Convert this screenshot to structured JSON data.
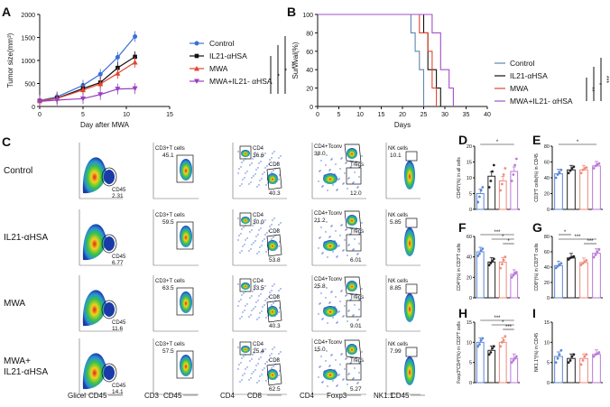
{
  "panel_labels": {
    "A": "A",
    "B": "B",
    "C": "C",
    "D": "D",
    "E": "E",
    "F": "F",
    "G": "G",
    "H": "H",
    "I": "I"
  },
  "colors": {
    "control": "#3a6fd8",
    "il21": "#111111",
    "mwa": "#e0462f",
    "combo": "#9b3fc0",
    "bar_control": "#5b86d6",
    "bar_il21": "#222222",
    "bar_mwa": "#f08a7a",
    "bar_combo": "#b877d6"
  },
  "chart_data": [
    {
      "id": "A",
      "type": "line",
      "xlabel": "Day after MWA",
      "ylabel": "Tumor size(mm³)",
      "xlim": [
        0,
        15
      ],
      "ylim": [
        0,
        2000
      ],
      "xticks": [
        "0",
        "5",
        "10",
        "15"
      ],
      "yticks": [
        "0",
        "500",
        "1000",
        "1500",
        "2000"
      ],
      "x": [
        0,
        2,
        5,
        7,
        9,
        11
      ],
      "series": [
        {
          "name": "Control",
          "marker": "circle",
          "values": [
            130,
            210,
            460,
            700,
            1070,
            1520
          ]
        },
        {
          "name": "IL21-αHSA",
          "marker": "square",
          "values": [
            120,
            180,
            390,
            520,
            840,
            1080
          ]
        },
        {
          "name": "MWA",
          "marker": "triangle",
          "values": [
            125,
            175,
            360,
            490,
            720,
            960
          ]
        },
        {
          "name": "MWA+IL21- αHSA",
          "marker": "tri-down",
          "values": [
            110,
            140,
            170,
            260,
            380,
            390
          ]
        }
      ],
      "significance": [
        "*",
        "*",
        "***"
      ]
    },
    {
      "id": "B",
      "type": "line",
      "subtype": "survival",
      "xlabel": "Days",
      "ylabel": "Survival(%)",
      "xlim": [
        0,
        40
      ],
      "ylim": [
        0,
        100
      ],
      "xticks": [
        "0",
        "5",
        "10",
        "15",
        "20",
        "25",
        "30",
        "35",
        "40"
      ],
      "yticks": [
        "0",
        "20",
        "40",
        "60",
        "80",
        "100"
      ],
      "series": [
        {
          "name": "Control",
          "steps": [
            [
              0,
              100
            ],
            [
              22,
              100
            ],
            [
              22,
              80
            ],
            [
              23,
              80
            ],
            [
              23,
              60
            ],
            [
              24,
              60
            ],
            [
              24,
              40
            ],
            [
              25,
              40
            ],
            [
              25,
              0
            ]
          ]
        },
        {
          "name": "IL21-αHSA",
          "steps": [
            [
              0,
              100
            ],
            [
              25,
              100
            ],
            [
              25,
              80
            ],
            [
              26,
              80
            ],
            [
              26,
              40
            ],
            [
              28,
              40
            ],
            [
              28,
              20
            ],
            [
              29,
              20
            ],
            [
              29,
              0
            ]
          ]
        },
        {
          "name": "MWA",
          "steps": [
            [
              0,
              100
            ],
            [
              24,
              100
            ],
            [
              24,
              80
            ],
            [
              26,
              80
            ],
            [
              26,
              60
            ],
            [
              27,
              60
            ],
            [
              27,
              20
            ],
            [
              28,
              20
            ],
            [
              28,
              0
            ]
          ]
        },
        {
          "name": "MWA+IL21- αHSA",
          "steps": [
            [
              0,
              100
            ],
            [
              27,
              100
            ],
            [
              27,
              80
            ],
            [
              29,
              80
            ],
            [
              29,
              40
            ],
            [
              31,
              40
            ],
            [
              31,
              20
            ],
            [
              32,
              20
            ],
            [
              32,
              0
            ]
          ]
        }
      ],
      "significance": [
        "**",
        "*",
        "***"
      ]
    },
    {
      "id": "D",
      "type": "bar",
      "ylabel": "CD45*(%) in all cells",
      "ylim": [
        0,
        20
      ],
      "yticks": [
        "0",
        "5",
        "10",
        "15",
        "20"
      ],
      "categories": [
        "Control",
        "IL21-αHSA",
        "MWA",
        "MWA+IL21-αHSA"
      ],
      "values": [
        5,
        10.5,
        9,
        12
      ],
      "points": [
        [
          2.3,
          4,
          6,
          7
        ],
        [
          7,
          9,
          12,
          14
        ],
        [
          6,
          8,
          11,
          13
        ],
        [
          9,
          11,
          14,
          16
        ]
      ],
      "sig": [
        {
          "from": 0,
          "to": 3,
          "label": "*"
        }
      ]
    },
    {
      "id": "E",
      "type": "bar",
      "ylabel": "CD3*T cells(%) in CD45",
      "ylim": [
        0,
        80
      ],
      "yticks": [
        "0",
        "20",
        "40",
        "60",
        "80"
      ],
      "categories": [
        "Control",
        "IL21-αHSA",
        "MWA",
        "MWA+IL21-αHSA"
      ],
      "values": [
        45,
        50,
        50,
        55
      ],
      "points": [
        [
          40,
          44,
          47,
          50
        ],
        [
          46,
          49,
          52,
          54
        ],
        [
          46,
          50,
          52,
          53
        ],
        [
          52,
          55,
          57,
          58
        ]
      ],
      "sig": [
        {
          "from": 0,
          "to": 3,
          "label": "*"
        }
      ]
    },
    {
      "id": "F",
      "type": "bar",
      "ylabel": "CD4*(%) in CD3*T cells",
      "ylim": [
        0,
        60
      ],
      "yticks": [
        "0",
        "20",
        "40",
        "60"
      ],
      "categories": [
        "Control",
        "IL21-αHSA",
        "MWA",
        "MWA+IL21-αHSA"
      ],
      "values": [
        45,
        35,
        35,
        23
      ],
      "points": [
        [
          41,
          43,
          46,
          48
        ],
        [
          32,
          34,
          36,
          38
        ],
        [
          29,
          33,
          37,
          40
        ],
        [
          20,
          22,
          24,
          25
        ]
      ],
      "sig": [
        {
          "from": 0,
          "to": 3,
          "label": "***"
        },
        {
          "from": 1,
          "to": 3,
          "label": "*"
        },
        {
          "from": 2,
          "to": 3,
          "label": "*"
        }
      ]
    },
    {
      "id": "G",
      "type": "bar",
      "ylabel": "CD8*(%) in CD3*T cells",
      "ylim": [
        0,
        80
      ],
      "yticks": [
        "0",
        "20",
        "40",
        "60",
        "80"
      ],
      "categories": [
        "Control",
        "IL21-αHSA",
        "MWA",
        "MWA+IL21-αHSA"
      ],
      "values": [
        42,
        52,
        46,
        58
      ],
      "points": [
        [
          39,
          41,
          43,
          45
        ],
        [
          50,
          52,
          53,
          54
        ],
        [
          43,
          45,
          47,
          49
        ],
        [
          53,
          56,
          60,
          63
        ]
      ],
      "sig": [
        {
          "from": 0,
          "to": 1,
          "label": "*"
        },
        {
          "from": 0,
          "to": 3,
          "label": "***"
        },
        {
          "from": 2,
          "to": 3,
          "label": "***"
        }
      ]
    },
    {
      "id": "H",
      "type": "bar",
      "ylabel": "Foxp3*CD4*(%) in CD3*T cells",
      "ylim": [
        0,
        15
      ],
      "yticks": [
        "0",
        "5",
        "10",
        "15"
      ],
      "categories": [
        "Control",
        "IL21-αHSA",
        "MWA",
        "MWA+IL21-αHSA"
      ],
      "values": [
        10,
        8,
        10,
        6
      ],
      "points": [
        [
          9,
          9.5,
          10.5,
          11
        ],
        [
          7,
          7.5,
          8.5,
          9
        ],
        [
          9,
          10,
          10.5,
          11.5
        ],
        [
          5,
          5.5,
          6,
          6.5
        ]
      ],
      "sig": [
        {
          "from": 0,
          "to": 3,
          "label": "***"
        },
        {
          "from": 1,
          "to": 3,
          "label": "*"
        },
        {
          "from": 2,
          "to": 3,
          "label": "***"
        }
      ]
    },
    {
      "id": "I",
      "type": "bar",
      "ylabel": "NK1.1*(%) in CD45",
      "ylim": [
        0,
        15
      ],
      "yticks": [
        "0",
        "5",
        "10",
        "15"
      ],
      "categories": [
        "Control",
        "IL21-αHSA",
        "MWA",
        "MWA+IL21-αHSA"
      ],
      "values": [
        6.5,
        6,
        6,
        7
      ],
      "points": [
        [
          5,
          6,
          7,
          8
        ],
        [
          5,
          5.5,
          6.5,
          7
        ],
        [
          4.5,
          5.5,
          6.5,
          7
        ],
        [
          6.5,
          7,
          7.2,
          7.5
        ]
      ],
      "sig": []
    }
  ],
  "flow": {
    "rows": [
      "Control",
      "IL21-αHSA",
      "MWA",
      "MWA+\nIL21-αHSA"
    ],
    "col_x_labels": [
      "CD45",
      "CD45",
      "CD8",
      "Foxp3",
      "CD45"
    ],
    "col_y_labels": [
      "Glicel",
      "CD3",
      "CD4",
      "CD4",
      "NK1.1"
    ],
    "gates": [
      [
        {
          "t": "CD45\n2.31"
        },
        {
          "t": "CD3+T cells\n45.1"
        },
        {
          "t": "CD4\n36.6",
          "t2": "CD8\n40.3"
        },
        {
          "t": "CD4+Tconv\n38.0",
          "t2": "Tregs\n12.0"
        },
        {
          "t": "NK cells\n10.1"
        }
      ],
      [
        {
          "t": "CD45\n6.77"
        },
        {
          "t": "CD3+T cells\n59.5"
        },
        {
          "t": "CD4\n30.0",
          "t2": "CD8\n53.8"
        },
        {
          "t": "CD4+Tconv\n21.2",
          "t2": "Tregs\n6.01"
        },
        {
          "t": "NK cells\n5.85"
        }
      ],
      [
        {
          "t": "CD45\n11.6"
        },
        {
          "t": "CD3+T cells\n63.5"
        },
        {
          "t": "CD4\n33.5",
          "t2": "CD8\n40.3"
        },
        {
          "t": "CD4+Tconv\n25.8",
          "t2": "Tregs\n9.01"
        },
        {
          "t": "NK cells\n8.85"
        }
      ],
      [
        {
          "t": "CD45\n14.1"
        },
        {
          "t": "CD3+T cells\n57.5"
        },
        {
          "t": "CD4\n25.4",
          "t2": "CD8\n62.5"
        },
        {
          "t": "CD4+Tconv\n15.0",
          "t2": "Tregs\n5.27"
        },
        {
          "t": "NK cells\n7.99"
        }
      ]
    ]
  }
}
